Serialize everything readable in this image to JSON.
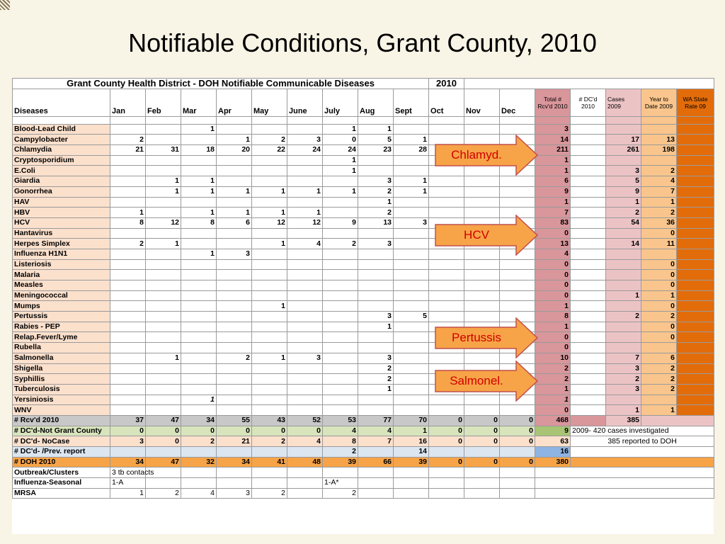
{
  "slide": {
    "title": "Notifiable Conditions, Grant County, 2010"
  },
  "sheet": {
    "title": "Grant County Health District - DOH Notifiable Communicable Diseases",
    "year": "2010",
    "headers": [
      "Diseases",
      "Jan",
      "Feb",
      "Mar",
      "Apr",
      "May",
      "June",
      "July",
      "Aug",
      "Sept",
      "Oct",
      "Nov",
      "Dec",
      "Total # Rcv'd 2010",
      "# DC'd 2010",
      "Cases 2009",
      "Year to Date 2009",
      "WA State Rate 09"
    ],
    "diseases": [
      {
        "name": "Blood-Lead Child",
        "m": [
          "",
          "",
          "1",
          "",
          "",
          "",
          "1",
          "1",
          "",
          "",
          "",
          ""
        ],
        "total": "3",
        "dc": "",
        "cases09": "",
        "ytd09": ""
      },
      {
        "name": "Campylobacter",
        "m": [
          "2",
          "",
          "",
          "1",
          "2",
          "3",
          "0",
          "5",
          "1",
          "",
          "",
          ""
        ],
        "total": "14",
        "dc": "",
        "cases09": "17",
        "ytd09": "13"
      },
      {
        "name": "Chlamydia",
        "m": [
          "21",
          "31",
          "18",
          "20",
          "22",
          "24",
          "24",
          "23",
          "28",
          "",
          "",
          ""
        ],
        "total": "211",
        "dc": "",
        "cases09": "261",
        "ytd09": "198"
      },
      {
        "name": "Cryptosporidium",
        "m": [
          "",
          "",
          "",
          "",
          "",
          "",
          "1",
          "",
          "",
          "",
          "",
          ""
        ],
        "total": "1",
        "dc": "",
        "cases09": "",
        "ytd09": ""
      },
      {
        "name": "E.Coli",
        "m": [
          "",
          "",
          "",
          "",
          "",
          "",
          "1",
          "",
          "",
          "",
          "",
          ""
        ],
        "total": "1",
        "dc": "",
        "cases09": "3",
        "ytd09": "2"
      },
      {
        "name": "Giardia",
        "m": [
          "",
          "1",
          "1",
          "",
          "",
          "",
          "",
          "3",
          "1",
          "",
          "",
          ""
        ],
        "total": "6",
        "dc": "",
        "cases09": "5",
        "ytd09": "4"
      },
      {
        "name": "Gonorrhea",
        "m": [
          "",
          "1",
          "1",
          "1",
          "1",
          "1",
          "1",
          "2",
          "1",
          "",
          "",
          ""
        ],
        "total": "9",
        "dc": "",
        "cases09": "9",
        "ytd09": "7"
      },
      {
        "name": "HAV",
        "m": [
          "",
          "",
          "",
          "",
          "",
          "",
          "",
          "1",
          "",
          "",
          "",
          ""
        ],
        "total": "1",
        "dc": "",
        "cases09": "1",
        "ytd09": "1"
      },
      {
        "name": "HBV",
        "m": [
          "1",
          "",
          "1",
          "1",
          "1",
          "1",
          "",
          "2",
          "",
          "",
          "",
          ""
        ],
        "total": "7",
        "dc": "",
        "cases09": "2",
        "ytd09": "2"
      },
      {
        "name": "HCV",
        "m": [
          "8",
          "12",
          "8",
          "6",
          "12",
          "12",
          "9",
          "13",
          "3",
          "",
          "",
          ""
        ],
        "total": "83",
        "dc": "",
        "cases09": "54",
        "ytd09": "36"
      },
      {
        "name": "Hantavirus",
        "m": [
          "",
          "",
          "",
          "",
          "",
          "",
          "",
          "",
          "",
          "",
          "",
          ""
        ],
        "total": "0",
        "dc": "",
        "cases09": "",
        "ytd09": "0"
      },
      {
        "name": "Herpes Simplex",
        "m": [
          "2",
          "1",
          "",
          "",
          "1",
          "4",
          "2",
          "3",
          "",
          "",
          "",
          ""
        ],
        "total": "13",
        "dc": "",
        "cases09": "14",
        "ytd09": "11"
      },
      {
        "name": "Influenza H1N1",
        "m": [
          "",
          "",
          "1",
          "3",
          "",
          "",
          "",
          "",
          "",
          "",
          "",
          ""
        ],
        "total": "4",
        "dc": "",
        "cases09": "",
        "ytd09": ""
      },
      {
        "name": "Listeriosis",
        "m": [
          "",
          "",
          "",
          "",
          "",
          "",
          "",
          "",
          "",
          "",
          "",
          ""
        ],
        "total": "0",
        "dc": "",
        "cases09": "",
        "ytd09": "0"
      },
      {
        "name": "Malaria",
        "m": [
          "",
          "",
          "",
          "",
          "",
          "",
          "",
          "",
          "",
          "",
          "",
          ""
        ],
        "total": "0",
        "dc": "",
        "cases09": "",
        "ytd09": "0"
      },
      {
        "name": "Measles",
        "m": [
          "",
          "",
          "",
          "",
          "",
          "",
          "",
          "",
          "",
          "",
          "",
          ""
        ],
        "total": "0",
        "dc": "",
        "cases09": "",
        "ytd09": "0"
      },
      {
        "name": "Meningococcal",
        "m": [
          "",
          "",
          "",
          "",
          "",
          "",
          "",
          "",
          "",
          "",
          "",
          ""
        ],
        "total": "0",
        "dc": "",
        "cases09": "1",
        "ytd09": "1"
      },
      {
        "name": "Mumps",
        "m": [
          "",
          "",
          "",
          "",
          "1",
          "",
          "",
          "",
          "",
          "",
          "",
          ""
        ],
        "total": "1",
        "dc": "",
        "cases09": "",
        "ytd09": "0"
      },
      {
        "name": "Pertussis",
        "m": [
          "",
          "",
          "",
          "",
          "",
          "",
          "",
          "3",
          "5",
          "",
          "",
          ""
        ],
        "total": "8",
        "dc": "",
        "cases09": "2",
        "ytd09": "2"
      },
      {
        "name": "Rabies - PEP",
        "m": [
          "",
          "",
          "",
          "",
          "",
          "",
          "",
          "1",
          "",
          "",
          "",
          ""
        ],
        "total": "1",
        "dc": "",
        "cases09": "",
        "ytd09": "0"
      },
      {
        "name": "Relap.Fever/Lyme",
        "m": [
          "",
          "",
          "",
          "",
          "",
          "",
          "",
          "",
          "",
          "",
          "",
          ""
        ],
        "total": "0",
        "dc": "",
        "cases09": "",
        "ytd09": "0"
      },
      {
        "name": "Rubella",
        "m": [
          "",
          "",
          "",
          "",
          "",
          "",
          "",
          "",
          "",
          "",
          "",
          ""
        ],
        "total": "0",
        "dc": "",
        "cases09": "",
        "ytd09": ""
      },
      {
        "name": "Salmonella",
        "m": [
          "",
          "1",
          "",
          "2",
          "1",
          "3",
          "",
          "3",
          "",
          "",
          "",
          ""
        ],
        "total": "10",
        "dc": "",
        "cases09": "7",
        "ytd09": "6"
      },
      {
        "name": "Shigella",
        "m": [
          "",
          "",
          "",
          "",
          "",
          "",
          "",
          "2",
          "",
          "",
          "",
          ""
        ],
        "total": "2",
        "dc": "",
        "cases09": "3",
        "ytd09": "2"
      },
      {
        "name": "Syphillis",
        "m": [
          "",
          "",
          "",
          "",
          "",
          "",
          "",
          "2",
          "",
          "",
          "",
          ""
        ],
        "total": "2",
        "dc": "",
        "cases09": "2",
        "ytd09": "2"
      },
      {
        "name": "Tuberculosis",
        "m": [
          "",
          "",
          "",
          "",
          "",
          "",
          "",
          "1",
          "",
          "",
          "",
          ""
        ],
        "total": "1",
        "dc": "",
        "cases09": "3",
        "ytd09": "2"
      },
      {
        "name": "Yersiniosis",
        "m": [
          "",
          "",
          "1",
          "",
          "",
          "",
          "",
          "",
          "",
          "",
          "",
          ""
        ],
        "total": "1",
        "dc": "",
        "cases09": "",
        "ytd09": ""
      },
      {
        "name": "WNV",
        "m": [
          "",
          "",
          "",
          "",
          "",
          "",
          "",
          "",
          "",
          "",
          "",
          ""
        ],
        "total": "0",
        "dc": "",
        "cases09": "1",
        "ytd09": "1"
      }
    ],
    "summary": [
      {
        "name": "# Rcv'd 2010",
        "m": [
          "37",
          "47",
          "34",
          "55",
          "43",
          "52",
          "53",
          "77",
          "70",
          "0",
          "0",
          "0"
        ],
        "total": "468",
        "cases09": "385",
        "color": "gray"
      },
      {
        "name": "# DC'd-Not Grant County",
        "m": [
          "0",
          "0",
          "0",
          "0",
          "0",
          "0",
          "4",
          "4",
          "1",
          "0",
          "0",
          "0"
        ],
        "total": "9",
        "note": "2009- 420 cases investigated",
        "color": "green"
      },
      {
        "name": "# DC'd- NoCase",
        "m": [
          "3",
          "0",
          "2",
          "21",
          "2",
          "4",
          "8",
          "7",
          "16",
          "0",
          "0",
          "0"
        ],
        "total": "63",
        "note": "385 reported to DOH",
        "color": "peach"
      },
      {
        "name": "# DC'd- /Prev. report",
        "m": [
          "",
          "",
          "",
          "",
          "",
          "",
          "2",
          "",
          "14",
          "",
          "",
          ""
        ],
        "total": "16",
        "note": "",
        "color": "blue"
      },
      {
        "name": "# DOH 2010",
        "m": [
          "34",
          "47",
          "32",
          "34",
          "41",
          "48",
          "39",
          "66",
          "39",
          "0",
          "0",
          "0"
        ],
        "total": "380",
        "note": "",
        "color": "orange"
      }
    ],
    "extra": [
      {
        "name": "Outbreak/Clusters",
        "m": [
          "3 tb contacts",
          "",
          "",
          "",
          "",
          "",
          "",
          "",
          "",
          "",
          "",
          ""
        ]
      },
      {
        "name": "Influenza-Seasonal",
        "m": [
          "1-A",
          "",
          "",
          "",
          "",
          "",
          "1-A*",
          "",
          "",
          "",
          "",
          ""
        ]
      },
      {
        "name": "MRSA",
        "m": [
          "1",
          "2",
          "4",
          "3",
          "2",
          "",
          "2",
          "",
          "",
          "",
          "",
          ""
        ]
      }
    ]
  },
  "callouts": [
    {
      "label": "Chlamyd.",
      "top": 190,
      "left": 614
    },
    {
      "label": "HCV",
      "top": 303,
      "left": 614
    },
    {
      "label": "Pertussis",
      "top": 448,
      "left": 614
    },
    {
      "label": "Salmonel.",
      "top": 509,
      "left": 614
    }
  ],
  "colors": {
    "arrow_fill": "#f7a347",
    "arrow_stroke": "#c0504d",
    "callout_text": "#d00000",
    "total_col": "#d9969b",
    "wa_col": "#e36c0a"
  }
}
